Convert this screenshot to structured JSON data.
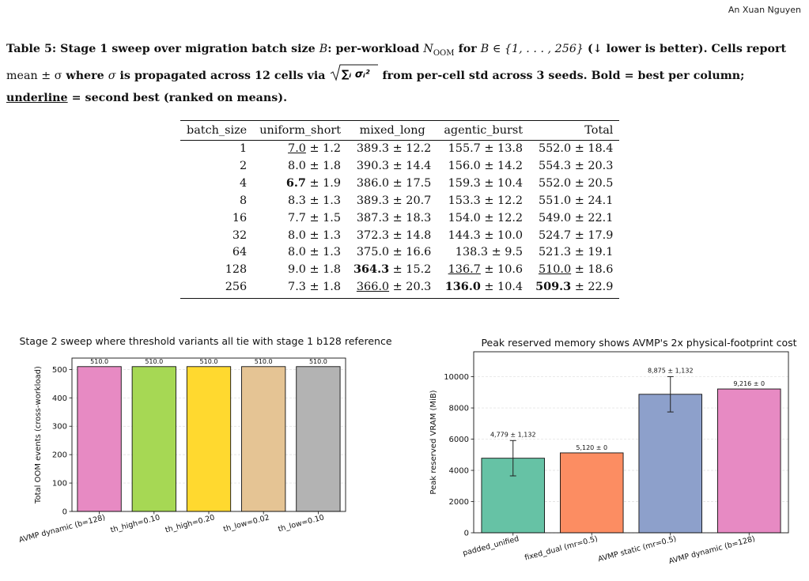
{
  "header": {
    "author": "An Xuan Nguyen"
  },
  "caption": {
    "p1": "Table 5: Stage 1 sweep over migration batch size ",
    "B": "B",
    "p2": ": per-workload ",
    "N": "N",
    "oom": "OOM",
    "p3": " for ",
    "set": "B ∈ {1, . . . , 256}",
    "p4": " (↓ lower is better). Cells report ",
    "meanpm": "mean ± σ",
    "p5": " where ",
    "sigma": "σ",
    "p6": " is propagated across 12 cells via ",
    "formula": "∑ᵢ σᵢ²",
    "p7": " from per-cell std across 3 seeds. Bold = best per column; ",
    "underline_word": "underline",
    "p8": " = second best (ranked on means)."
  },
  "table": {
    "headers": [
      "batch_size",
      "uniform_short",
      "mixed_long",
      "agentic_burst",
      "Total"
    ],
    "rows": [
      {
        "batch": "1",
        "cells": [
          {
            "m": "7.0",
            "s": "± 1.2",
            "st": "u"
          },
          {
            "m": "389.3",
            "s": "± 12.2",
            "st": ""
          },
          {
            "m": "155.7",
            "s": "± 13.8",
            "st": ""
          },
          {
            "m": "552.0",
            "s": "± 18.4",
            "st": ""
          }
        ]
      },
      {
        "batch": "2",
        "cells": [
          {
            "m": "8.0",
            "s": "± 1.8",
            "st": ""
          },
          {
            "m": "390.3",
            "s": "± 14.4",
            "st": ""
          },
          {
            "m": "156.0",
            "s": "± 14.2",
            "st": ""
          },
          {
            "m": "554.3",
            "s": "± 20.3",
            "st": ""
          }
        ]
      },
      {
        "batch": "4",
        "cells": [
          {
            "m": "6.7",
            "s": "± 1.9",
            "st": "b"
          },
          {
            "m": "386.0",
            "s": "± 17.5",
            "st": ""
          },
          {
            "m": "159.3",
            "s": "± 10.4",
            "st": ""
          },
          {
            "m": "552.0",
            "s": "± 20.5",
            "st": ""
          }
        ]
      },
      {
        "batch": "8",
        "cells": [
          {
            "m": "8.3",
            "s": "± 1.3",
            "st": ""
          },
          {
            "m": "389.3",
            "s": "± 20.7",
            "st": ""
          },
          {
            "m": "153.3",
            "s": "± 12.2",
            "st": ""
          },
          {
            "m": "551.0",
            "s": "± 24.1",
            "st": ""
          }
        ]
      },
      {
        "batch": "16",
        "cells": [
          {
            "m": "7.7",
            "s": "± 1.5",
            "st": ""
          },
          {
            "m": "387.3",
            "s": "± 18.3",
            "st": ""
          },
          {
            "m": "154.0",
            "s": "± 12.2",
            "st": ""
          },
          {
            "m": "549.0",
            "s": "± 22.1",
            "st": ""
          }
        ]
      },
      {
        "batch": "32",
        "cells": [
          {
            "m": "8.0",
            "s": "± 1.3",
            "st": ""
          },
          {
            "m": "372.3",
            "s": "± 14.8",
            "st": ""
          },
          {
            "m": "144.3",
            "s": "± 10.0",
            "st": ""
          },
          {
            "m": "524.7",
            "s": "± 17.9",
            "st": ""
          }
        ]
      },
      {
        "batch": "64",
        "cells": [
          {
            "m": "8.0",
            "s": "± 1.3",
            "st": ""
          },
          {
            "m": "375.0",
            "s": "± 16.6",
            "st": ""
          },
          {
            "m": "138.3",
            "s": "± 9.5",
            "st": ""
          },
          {
            "m": "521.3",
            "s": "± 19.1",
            "st": ""
          }
        ]
      },
      {
        "batch": "128",
        "cells": [
          {
            "m": "9.0",
            "s": "± 1.8",
            "st": ""
          },
          {
            "m": "364.3",
            "s": "± 15.2",
            "st": "b"
          },
          {
            "m": "136.7",
            "s": "± 10.6",
            "st": "u"
          },
          {
            "m": "510.0",
            "s": "± 18.6",
            "st": "u"
          }
        ]
      },
      {
        "batch": "256",
        "cells": [
          {
            "m": "7.3",
            "s": "± 1.8",
            "st": ""
          },
          {
            "m": "366.0",
            "s": "± 20.3",
            "st": "u"
          },
          {
            "m": "136.0",
            "s": "± 10.4",
            "st": "b"
          },
          {
            "m": "509.3",
            "s": "± 22.9",
            "st": "b"
          }
        ]
      }
    ]
  },
  "chart_data": [
    {
      "type": "bar",
      "title": "Stage 2 sweep where threshold variants all tie with stage 1 b128 reference",
      "xlabel": "",
      "ylabel": "Total OOM events (cross-workload)",
      "ylim": [
        0,
        540
      ],
      "yticks": [
        0,
        100,
        200,
        300,
        400,
        500
      ],
      "grid": true,
      "categories": [
        "AVMP dynamic (b=128)",
        "th_high=0.10",
        "th_high=0.20",
        "th_low=0.02",
        "th_low=0.10"
      ],
      "values": [
        510.0,
        510.0,
        510.0,
        510.0,
        510.0
      ],
      "value_labels": [
        "510.0",
        "510.0",
        "510.0",
        "510.0",
        "510.0"
      ],
      "colors": [
        "#e78ac3",
        "#a6d854",
        "#ffd92f",
        "#e5c494",
        "#b3b3b3"
      ]
    },
    {
      "type": "bar",
      "title": "Peak reserved memory shows AVMP's 2x physical-footprint cost",
      "xlabel": "",
      "ylabel": "Peak reserved VRAM (MiB)",
      "ylim": [
        0,
        11600
      ],
      "yticks": [
        0,
        2000,
        4000,
        6000,
        8000,
        10000
      ],
      "grid": true,
      "categories": [
        "padded_unified",
        "fixed_dual (mr=0.5)",
        "AVMP static (mr=0.5)",
        "AVMP dynamic (b=128)"
      ],
      "values": [
        4779,
        5120,
        8875,
        9216
      ],
      "errors": [
        1132,
        0,
        1132,
        0
      ],
      "value_labels": [
        "4,779 ± 1,132",
        "5,120 ± 0",
        "8,875 ± 1,132",
        "9,216 ± 0"
      ],
      "colors": [
        "#66c2a5",
        "#fc8d62",
        "#8da0cb",
        "#e78ac3"
      ]
    }
  ]
}
